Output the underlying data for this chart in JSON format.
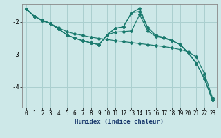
{
  "xlabel": "Humidex (Indice chaleur)",
  "background_color": "#cde8e8",
  "grid_color": "#aacfcf",
  "line_color": "#1a7a6e",
  "x_data": [
    0,
    1,
    2,
    3,
    4,
    5,
    6,
    7,
    8,
    9,
    10,
    11,
    12,
    13,
    14,
    15,
    16,
    17,
    18,
    19,
    20,
    21,
    22,
    23
  ],
  "line1": [
    -1.6,
    -1.83,
    -1.97,
    -2.05,
    -2.18,
    -2.3,
    -2.37,
    -2.42,
    -2.47,
    -2.51,
    -2.54,
    -2.58,
    -2.61,
    -2.64,
    -2.67,
    -2.7,
    -2.73,
    -2.76,
    -2.8,
    -2.85,
    -2.92,
    -3.08,
    -3.6,
    -4.35
  ],
  "line2": [
    -1.6,
    -1.83,
    -1.95,
    -2.05,
    -2.22,
    -2.4,
    -2.5,
    -2.58,
    -2.65,
    -2.7,
    -2.4,
    -2.32,
    -2.3,
    -2.28,
    -1.78,
    -2.28,
    -2.45,
    -2.5,
    -2.58,
    -2.7,
    -2.95,
    -3.28,
    -3.75,
    -4.42
  ],
  "line3": [
    -1.6,
    -1.83,
    -1.95,
    -2.05,
    -2.22,
    -2.4,
    -2.5,
    -2.58,
    -2.65,
    -2.7,
    -2.4,
    -2.2,
    -2.15,
    -1.72,
    -1.68,
    -2.18,
    -2.42,
    -2.48,
    -2.58,
    -2.7,
    -2.95,
    -3.28,
    -3.75,
    -4.42
  ],
  "line4": [
    -1.6,
    -1.83,
    -1.95,
    -2.05,
    -2.22,
    -2.4,
    -2.5,
    -2.58,
    -2.65,
    -2.7,
    -2.4,
    -2.2,
    -2.15,
    -1.72,
    -1.58,
    -2.18,
    -2.42,
    -2.48,
    -2.58,
    -2.7,
    -2.95,
    -3.28,
    -3.75,
    -4.42
  ],
  "ylim": [
    -4.65,
    -1.45
  ],
  "xlim": [
    -0.5,
    23.5
  ],
  "yticks": [
    -4,
    -3,
    -2
  ],
  "xticks": [
    0,
    1,
    2,
    3,
    4,
    5,
    6,
    7,
    8,
    9,
    10,
    11,
    12,
    13,
    14,
    15,
    16,
    17,
    18,
    19,
    20,
    21,
    22,
    23
  ],
  "marker": "D",
  "markersize": 2.0,
  "linewidth": 0.9,
  "tick_fontsize": 5.5,
  "xlabel_fontsize": 6.5
}
